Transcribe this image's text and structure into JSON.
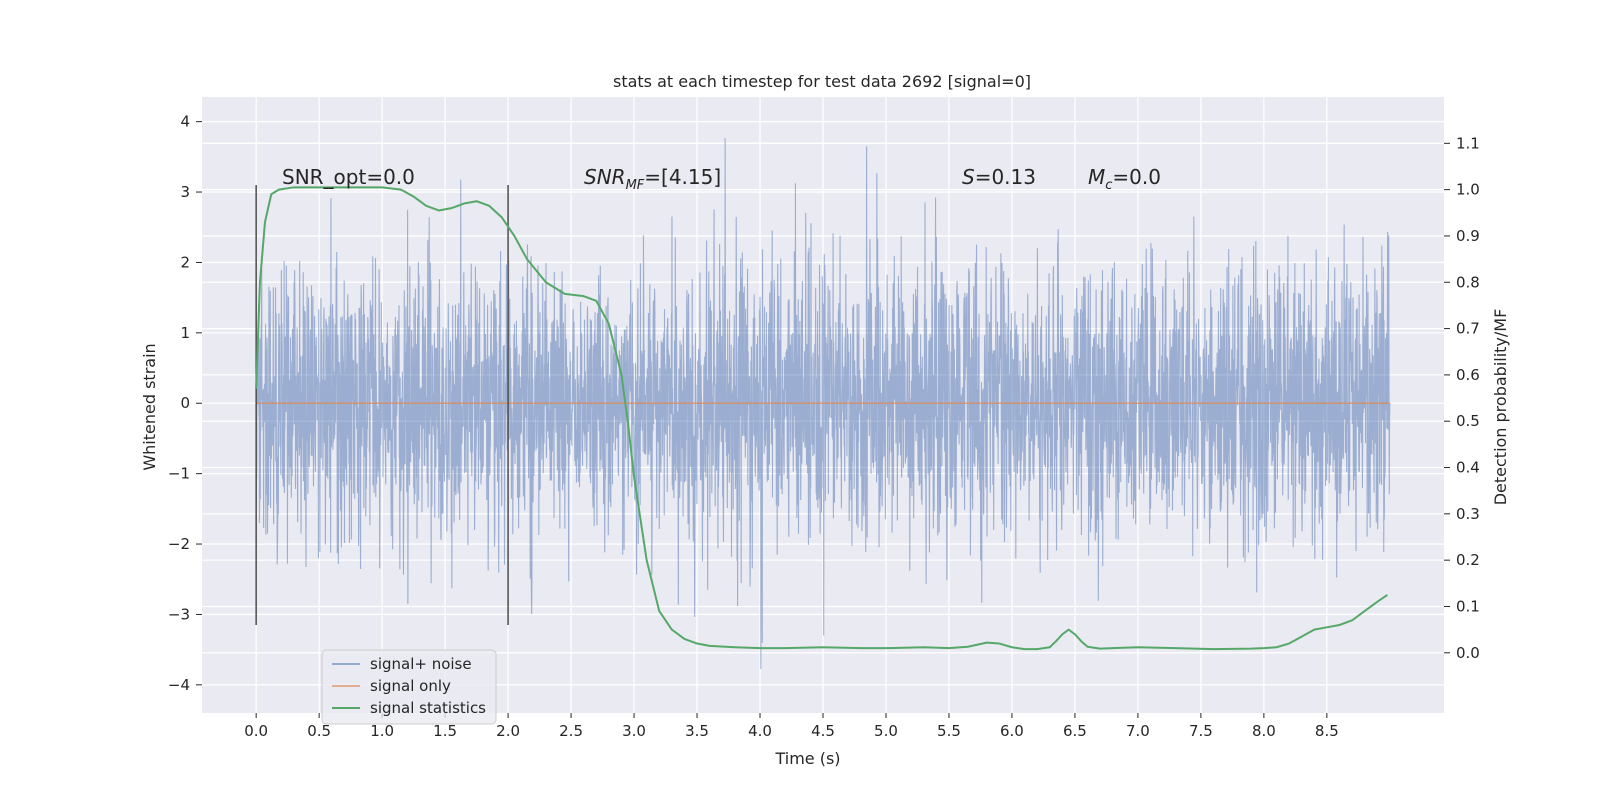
{
  "chart_data": {
    "type": "line",
    "title": "stats at each timestep for test data 2692 [signal=0]",
    "xlabel": "Time (s)",
    "ylabel": "Whitened strain",
    "y2label": "Detection probability/MF",
    "xlim": [
      -0.43,
      9.43
    ],
    "ylim": [
      -4.4,
      4.35
    ],
    "y2lim": [
      -0.13,
      1.2
    ],
    "x_ticks": [
      0.0,
      0.5,
      1.0,
      1.5,
      2.0,
      2.5,
      3.0,
      3.5,
      4.0,
      4.5,
      5.0,
      5.5,
      6.0,
      6.5,
      7.0,
      7.5,
      8.0,
      8.5
    ],
    "x_tick_labels": [
      "0.0",
      "0.5",
      "1.0",
      "1.5",
      "2.0",
      "2.5",
      "3.0",
      "3.5",
      "4.0",
      "4.5",
      "5.0",
      "5.5",
      "6.0",
      "6.5",
      "7.0",
      "7.5",
      "8.0",
      "8.5"
    ],
    "y_ticks": [
      4,
      3,
      2,
      1,
      0,
      -1,
      -2,
      -3,
      -4
    ],
    "y_tick_labels": [
      "4",
      "3",
      "2",
      "1",
      "0",
      "−1",
      "−2",
      "−3",
      "−4"
    ],
    "y2_ticks": [
      1.1,
      1.0,
      0.9,
      0.8,
      0.7,
      0.6,
      0.5,
      0.4,
      0.3,
      0.2,
      0.1,
      0.0
    ],
    "y2_tick_labels": [
      "1.1",
      "1.0",
      "0.9",
      "0.8",
      "0.7",
      "0.6",
      "0.5",
      "0.4",
      "0.3",
      "0.2",
      "0.1",
      "0.0"
    ],
    "grid": true,
    "legend_position": "lower-left",
    "vertical_markers": [
      {
        "x": 0.0,
        "y_range": [
          -3.15,
          3.1
        ]
      },
      {
        "x": 2.0,
        "y_range": [
          -3.15,
          3.1
        ]
      }
    ],
    "annotations": {
      "snr_opt": "SNR_opt=0.0",
      "snr_mf_sym": "SNR",
      "snr_mf_sub": "MF",
      "snr_mf_val": "=[4.15]",
      "s_sym": "S",
      "s_val": "=0.13",
      "mc_sym": "M",
      "mc_sub": "c",
      "mc_val": "=0.0"
    },
    "series": [
      {
        "name": "signal+ noise",
        "color": "#4c72b0",
        "opacity": 0.5,
        "x_range": [
          0.0,
          9.0
        ],
        "samples": 4096,
        "seed": 2692,
        "std": 0.95,
        "axis": "left"
      },
      {
        "name": "signal only",
        "color": "#dd8452",
        "x": [
          0.0,
          9.0
        ],
        "y": [
          0.0,
          0.0
        ],
        "axis": "left"
      },
      {
        "name": "signal statistics",
        "color": "#55a868",
        "axis": "right",
        "x": [
          0.0,
          0.03,
          0.07,
          0.12,
          0.18,
          0.3,
          0.45,
          0.6,
          0.8,
          1.0,
          1.15,
          1.25,
          1.35,
          1.45,
          1.55,
          1.65,
          1.75,
          1.85,
          1.95,
          2.05,
          2.15,
          2.3,
          2.45,
          2.6,
          2.7,
          2.8,
          2.9,
          2.95,
          3.0,
          3.1,
          3.2,
          3.25,
          3.3,
          3.4,
          3.5,
          3.6,
          3.8,
          4.0,
          4.2,
          4.5,
          4.8,
          5.0,
          5.3,
          5.5,
          5.65,
          5.8,
          5.9,
          6.0,
          6.1,
          6.2,
          6.3,
          6.35,
          6.4,
          6.45,
          6.5,
          6.55,
          6.6,
          6.7,
          6.8,
          7.0,
          7.3,
          7.6,
          7.9,
          8.0,
          8.1,
          8.2,
          8.3,
          8.4,
          8.5,
          8.6,
          8.7,
          8.8,
          8.9,
          8.98
        ],
        "y": [
          0.57,
          0.8,
          0.93,
          0.99,
          1.0,
          1.005,
          1.005,
          1.005,
          1.005,
          1.005,
          1.0,
          0.985,
          0.965,
          0.955,
          0.96,
          0.97,
          0.975,
          0.965,
          0.94,
          0.9,
          0.85,
          0.8,
          0.775,
          0.77,
          0.76,
          0.71,
          0.6,
          0.5,
          0.38,
          0.2,
          0.09,
          0.07,
          0.05,
          0.03,
          0.02,
          0.015,
          0.012,
          0.01,
          0.01,
          0.012,
          0.01,
          0.01,
          0.012,
          0.01,
          0.013,
          0.022,
          0.02,
          0.012,
          0.008,
          0.008,
          0.012,
          0.025,
          0.04,
          0.05,
          0.04,
          0.025,
          0.013,
          0.009,
          0.01,
          0.012,
          0.01,
          0.008,
          0.009,
          0.01,
          0.012,
          0.02,
          0.035,
          0.05,
          0.055,
          0.06,
          0.07,
          0.09,
          0.11,
          0.125
        ]
      }
    ]
  }
}
